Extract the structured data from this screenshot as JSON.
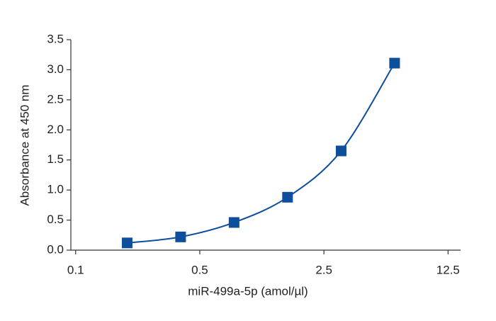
{
  "chart_data": {
    "type": "scatter",
    "x_label": "miR-499a-5p (amol/µl)",
    "y_label": "Absorbance at 450 nm",
    "x_scale": "log",
    "xlim": [
      0.094,
      14.7
    ],
    "xticks": [
      0.1,
      0.5,
      2.5,
      12.5
    ],
    "ylim": [
      0,
      3.5
    ],
    "yticks": [
      {
        "value": 0,
        "label": "0.0"
      },
      0.5,
      {
        "value": 1,
        "label": "1.0"
      },
      1.5,
      {
        "value": 2,
        "label": "2.0"
      },
      2.5,
      {
        "value": 3,
        "label": "3.0"
      },
      3.5
    ],
    "fit_curve": true,
    "series": [
      {
        "color": "#0d4f9c",
        "x": [
          0.195,
          0.39,
          0.78,
          1.56,
          3.125,
          6.25
        ],
        "values": [
          0.12,
          0.22,
          0.46,
          0.88,
          1.65,
          3.11
        ]
      }
    ]
  }
}
